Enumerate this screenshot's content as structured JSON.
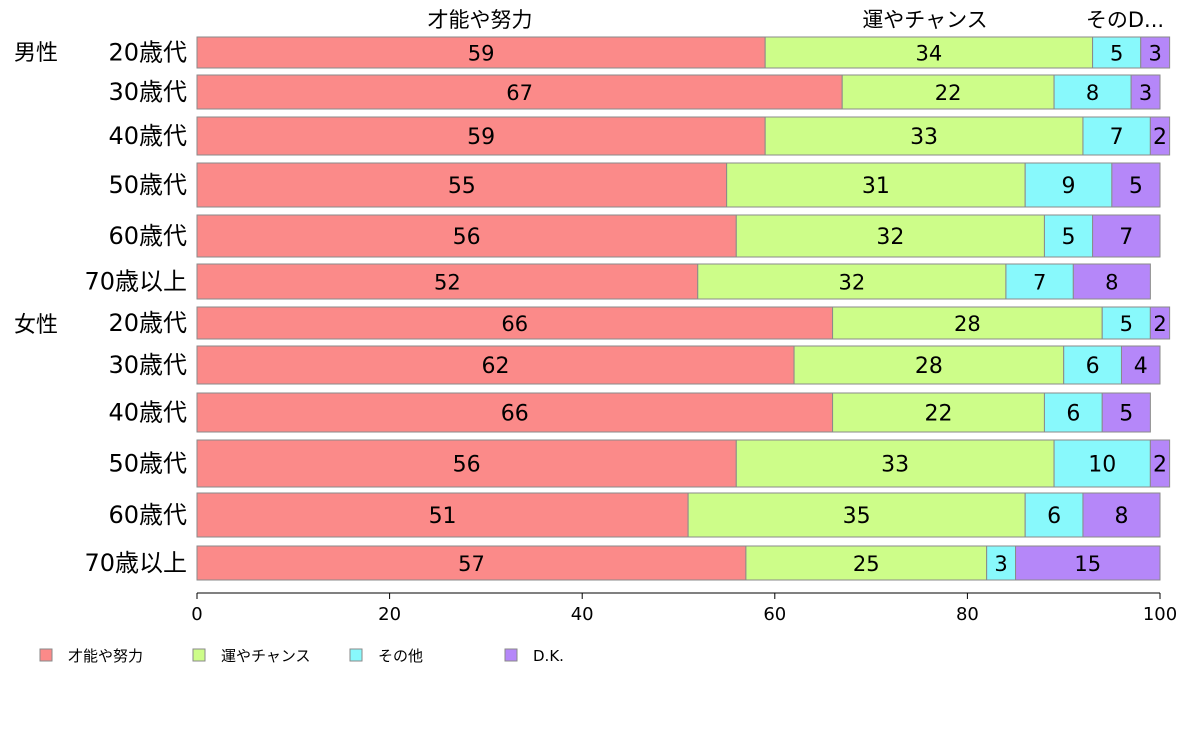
{
  "chart_data": {
    "type": "bar",
    "orientation": "horizontal",
    "stacked": true,
    "column_headers": [
      "才能や努力",
      "運やチャンス",
      "そのD..."
    ],
    "groups": [
      {
        "name": "男性",
        "categories": [
          "20歳代",
          "30歳代",
          "40歳代",
          "50歳代",
          "60歳代",
          "70歳以上"
        ]
      },
      {
        "name": "女性",
        "categories": [
          "20歳代",
          "30歳代",
          "40歳代",
          "50歳代",
          "60歳代",
          "70歳以上"
        ]
      }
    ],
    "series": [
      {
        "name": "才能や努力",
        "color": "#fb8a89",
        "values": [
          59,
          67,
          59,
          55,
          56,
          52,
          66,
          62,
          66,
          56,
          51,
          57
        ]
      },
      {
        "name": "運やチャンス",
        "color": "#cdfd89",
        "values": [
          34,
          22,
          33,
          31,
          32,
          32,
          28,
          28,
          22,
          33,
          35,
          25
        ]
      },
      {
        "name": "その他",
        "color": "#88f9fc",
        "values": [
          5,
          8,
          7,
          9,
          5,
          7,
          5,
          6,
          6,
          10,
          6,
          3
        ]
      },
      {
        "name": "D.K.",
        "color": "#b587f9",
        "values": [
          3,
          3,
          2,
          5,
          7,
          8,
          2,
          4,
          5,
          2,
          8,
          15
        ]
      }
    ],
    "xlim": [
      0,
      100
    ],
    "xticks": [
      0,
      20,
      40,
      60,
      80,
      100
    ],
    "legend_position": "bottom-left",
    "grid": false
  }
}
